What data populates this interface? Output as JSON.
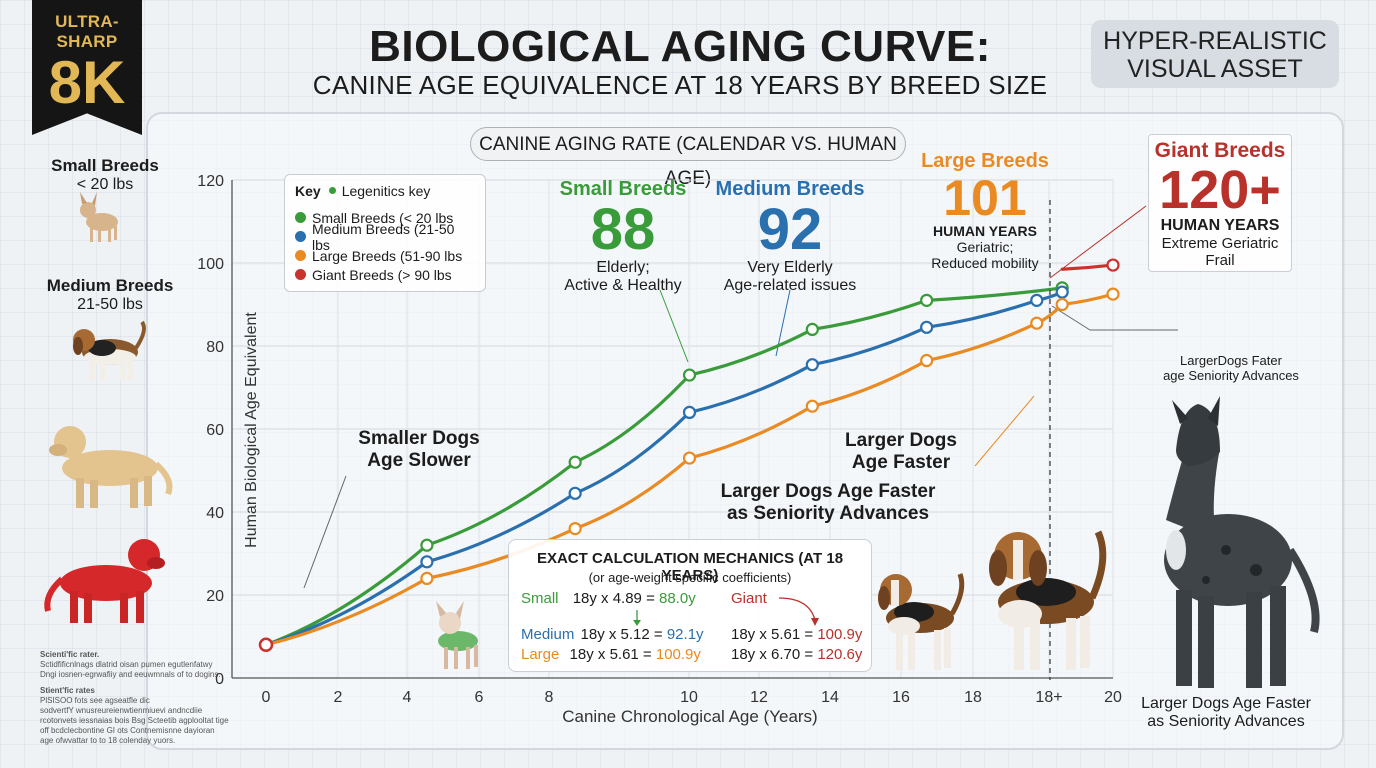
{
  "badge": {
    "line1": "ULTRA-SHARP",
    "line2": "8K"
  },
  "title": "BIOLOGICAL AGING CURVE:",
  "subtitle": "CANINE AGE EQUIVALENCE AT 18 YEARS BY BREED SIZE",
  "corner_label": {
    "line1": "HYPER-REALISTIC",
    "line2": "VISUAL ASSET"
  },
  "side_panel": {
    "small": {
      "name": "Small Breeds",
      "weight": "< 20 lbs"
    },
    "medium": {
      "name": "Medium Breeds",
      "weight": "21-50 lbs"
    }
  },
  "chart_data": {
    "type": "line",
    "title": "CANINE AGING RATE (CALENDAR VS. HUMAN AGE)",
    "xlabel": "Canine Chronological Age (Years)",
    "ylabel": "Human Biological Age Equivalent",
    "xlim": [
      0,
      20
    ],
    "ylim": [
      0,
      120
    ],
    "x_ticks": [
      "0",
      "2",
      "4",
      "6",
      "8",
      "10",
      "12",
      "14",
      "16",
      "18",
      "18+",
      "20"
    ],
    "y_ticks": [
      "0",
      "20",
      "40",
      "60",
      "80",
      "100",
      "120"
    ],
    "grid": true,
    "legend_title": "Key",
    "legend_subtitle": "Legenitics key",
    "legend_placement": "top-left",
    "series": [
      {
        "name": "Small Breeds (< 20 lbs",
        "color": "#3a9b3a",
        "x": [
          0,
          3.8,
          7.3,
          10,
          12.9,
          15.6,
          18.8
        ],
        "y": [
          8,
          32,
          52,
          73,
          84,
          91,
          94
        ]
      },
      {
        "name": "Medium Breeds (21-50 lbs",
        "color": "#2a6fae",
        "x": [
          0,
          3.8,
          7.3,
          10,
          12.9,
          15.6,
          18.2,
          18.8
        ],
        "y": [
          8,
          28,
          44.5,
          64,
          75.5,
          84.5,
          91,
          93
        ]
      },
      {
        "name": "Large Breeds (51-90 lbs",
        "color": "#e98a23",
        "x": [
          0,
          3.8,
          7.3,
          10,
          12.9,
          15.6,
          18.2,
          18.8,
          20
        ],
        "y": [
          8,
          24,
          36,
          53,
          65.5,
          76.5,
          85.5,
          90,
          92.5
        ]
      },
      {
        "name": "Giant Breeds (> 90 lbs",
        "color": "#c9332c",
        "x": [
          18.8,
          20
        ],
        "y": [
          98.5,
          99.5
        ]
      }
    ],
    "annotations": {
      "small": {
        "label": "Small Breeds",
        "value": "88",
        "lines": [
          "Elderly;",
          "Active & Healthy"
        ]
      },
      "medium": {
        "label": "Medium Breeds",
        "value": "92",
        "lines": [
          "Very Elderly",
          "Age-related issues"
        ]
      },
      "large": {
        "label": "Large Breeds",
        "value": "101",
        "units": "HUMAN YEARS",
        "lines": [
          "Geriatric;",
          "Reduced mobility"
        ]
      },
      "giant": {
        "label": "Giant Breeds",
        "value": "120+",
        "units": "HUMAN YEARS",
        "lines": [
          "Extreme Geriatric",
          "Frail"
        ]
      },
      "smaller_dogs": [
        "Smaller Dogs",
        "Age Slower"
      ],
      "larger_dogs": [
        "Larger Dogs",
        "Age Faster"
      ],
      "seniority": [
        "Larger Dogs Age Faster",
        "as Seniority Advances"
      ],
      "right_note": [
        "LargerDogs Fater",
        "age Seniority Advances"
      ],
      "bottom_right": [
        "Larger Dogs Age Faster",
        "as Seniority Advances"
      ]
    }
  },
  "calc_box": {
    "title": "EXACT CALCULATION MECHANICS (AT 18 YEARS)",
    "subtitle": "(or age-weight specific coefficients)",
    "small": {
      "label": "Small",
      "expr": "18y x 4.89 = ",
      "result": "88.0y"
    },
    "giant_label": "Giant",
    "medium": {
      "label": "Medium",
      "expr": "18y x 5.12 = ",
      "result": "92.1y"
    },
    "large": {
      "label": "Large",
      "expr": "18y x 5.61 = ",
      "result": "100.9y"
    },
    "right1": {
      "expr": "18y x 5.61 = ",
      "result": "100.9y"
    },
    "right2": {
      "expr": "18y x 6.70 = ",
      "result": "120.6y"
    }
  },
  "notes": {
    "n1_title": "Scienti'fic rater.",
    "n1_line1": "Sctidfificnlnags dlatrid oisan pumen egutlenfatwy",
    "n1_line2": "Dngi iosnen-egrwafiiy and eeuwmnals of to dogins.",
    "n2_title": "Stient'fic rates",
    "n2_lines": [
      "PlSISOO fots see agseatfle dic",
      "sodvertfY wnusreureienwtienmiuevi andncdiie",
      "rcotonvets iessnaias bois Bsg Scteetib agplooltat tige",
      "off bcdclecbontine GI ots Contnemisnne dayioran",
      "age ofwvattar to to 18 colenday yuors."
    ]
  }
}
